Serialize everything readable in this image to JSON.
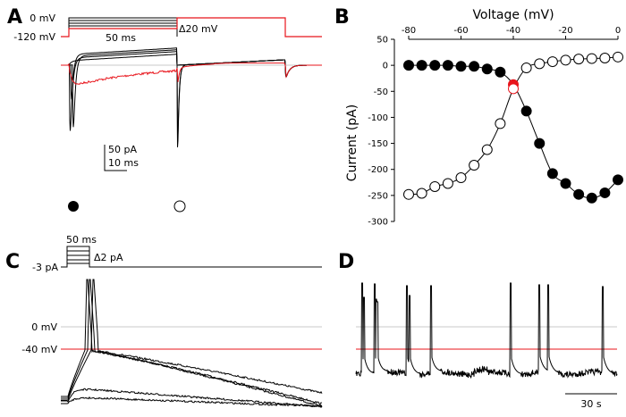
{
  "panels": {
    "A": {
      "label": "A",
      "hold_top": "0 mV",
      "hold_bottom": "-120 mV",
      "step_duration": "50 ms",
      "step_increment": "Δ20 mV",
      "scale_y": "50 pA",
      "scale_x": "10 ms",
      "marker_first": "filled-circle",
      "marker_second": "open-circle"
    },
    "B": {
      "label": "B"
    },
    "C": {
      "label": "C",
      "step_duration": "50 ms",
      "step_increment": "Δ2 pA",
      "hold_current": "-3 pA",
      "line_0": "0 mV",
      "line_neg40": "-40 mV"
    },
    "D": {
      "label": "D",
      "scale_x": "30 s"
    }
  },
  "colors": {
    "trace": "#000000",
    "highlight": "#e8141b",
    "reference": "#c8c8c8"
  },
  "chart_data": {
    "type": "scatter",
    "panel": "B",
    "xlabel": "Voltage (mV)",
    "ylabel": "Current (pA)",
    "xlim": [
      -80,
      0
    ],
    "ylim": [
      -300,
      50
    ],
    "x_axis_position": "top",
    "xticks": [
      "-80",
      "-60",
      "-40",
      "-20",
      "0"
    ],
    "yticks": [
      "50",
      "0",
      "-50",
      "-100",
      "-150",
      "-200",
      "-250",
      "-300"
    ],
    "grid": false,
    "x": [
      -80,
      -75,
      -70,
      -65,
      -60,
      -55,
      -50,
      -45,
      -40,
      -35,
      -30,
      -25,
      -20,
      -15,
      -10,
      -5,
      0
    ],
    "series": [
      {
        "marker": "filled-circle",
        "values": [
          0,
          0,
          0,
          0,
          -2,
          -2,
          -7,
          -13,
          -37,
          -88,
          -150,
          -208,
          -227,
          -248,
          -255,
          -245,
          -220
        ],
        "highlight_x": -40
      },
      {
        "marker": "open-circle",
        "values": [
          -248,
          -246,
          -233,
          -227,
          -216,
          -192,
          -162,
          -112,
          -45,
          -5,
          3,
          7,
          10,
          12,
          13,
          14,
          16
        ],
        "highlight_x": -40
      }
    ],
    "fit_lines": true
  }
}
